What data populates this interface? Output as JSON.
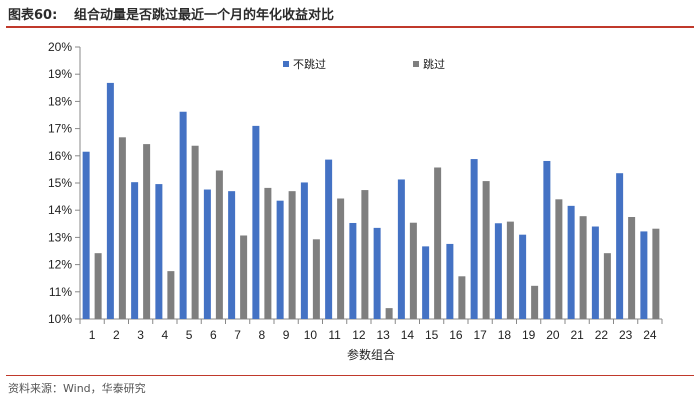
{
  "header": {
    "figure_label": "图表60:",
    "title": "组合动量是否跳过最近一个月的年化收益对比"
  },
  "source": "资料来源：Wind，华泰研究",
  "colors": {
    "series_1": "#4472C4",
    "series_2": "#7F7F7F",
    "accent_rule": "#c0392b",
    "axis": "#888888"
  },
  "chart_data": {
    "type": "bar",
    "title": "",
    "xlabel": "参数组合",
    "ylabel": "",
    "categories": [
      "1",
      "2",
      "3",
      "4",
      "5",
      "6",
      "7",
      "8",
      "9",
      "10",
      "11",
      "12",
      "13",
      "14",
      "15",
      "16",
      "17",
      "18",
      "19",
      "20",
      "21",
      "22",
      "23",
      "24"
    ],
    "series": [
      {
        "name": "不跳过",
        "color": "#4472C4",
        "values": [
          16.15,
          18.68,
          15.03,
          14.96,
          17.62,
          14.76,
          14.7,
          17.1,
          14.35,
          15.02,
          15.86,
          13.53,
          13.35,
          15.13,
          12.67,
          12.76,
          15.88,
          13.52,
          13.1,
          15.81,
          14.16,
          13.4,
          15.36,
          13.22
        ]
      },
      {
        "name": "跳过",
        "color": "#7F7F7F",
        "values": [
          12.42,
          16.68,
          16.43,
          11.76,
          16.37,
          15.46,
          13.07,
          14.82,
          14.7,
          12.93,
          14.43,
          14.74,
          10.4,
          13.54,
          15.57,
          11.57,
          15.07,
          13.58,
          11.22,
          14.4,
          13.78,
          12.42,
          13.75,
          13.32
        ]
      }
    ],
    "ylim": [
      10,
      20
    ],
    "yticks": [
      "10%",
      "11%",
      "12%",
      "13%",
      "14%",
      "15%",
      "16%",
      "17%",
      "18%",
      "19%",
      "20%"
    ],
    "grid": false,
    "legend_position": "top"
  }
}
